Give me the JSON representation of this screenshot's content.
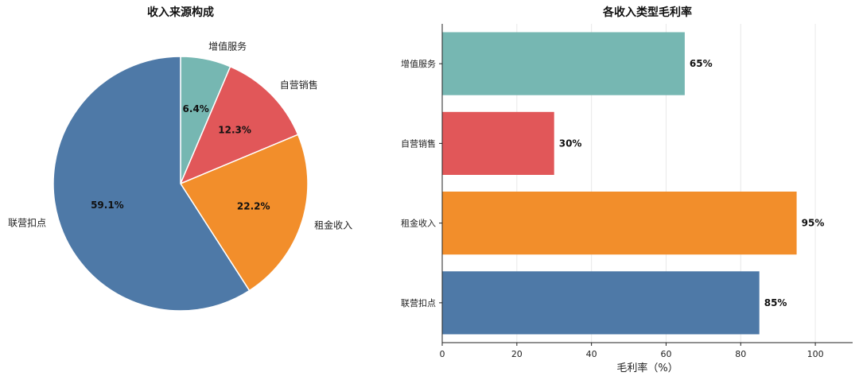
{
  "colors": {
    "联营扣点": "#4e79a7",
    "租金收入": "#f28e2b",
    "自营销售": "#e15759",
    "增值服务": "#76b7b2"
  },
  "chart_data": [
    {
      "type": "pie",
      "title": "收入来源构成",
      "start_angle_deg": 90,
      "direction": "clockwise",
      "slices": [
        {
          "label": "增值服务",
          "value": 6.4,
          "value_label": "6.4%"
        },
        {
          "label": "自营销售",
          "value": 12.3,
          "value_label": "12.3%"
        },
        {
          "label": "租金收入",
          "value": 22.2,
          "value_label": "22.2%"
        },
        {
          "label": "联营扣点",
          "value": 59.1,
          "value_label": "59.1%"
        }
      ]
    },
    {
      "type": "bar",
      "orientation": "horizontal",
      "title": "各收入类型毛利率",
      "xlabel": "毛利率（%）",
      "ylabel": "",
      "xlim": [
        0,
        110
      ],
      "xticks": [
        "0",
        "20",
        "40",
        "60",
        "80",
        "100"
      ],
      "grid": "vertical",
      "categories": [
        "增值服务",
        "自营销售",
        "租金收入",
        "联营扣点"
      ],
      "values": [
        65,
        30,
        95,
        85
      ],
      "value_labels": [
        "65%",
        "30%",
        "95%",
        "85%"
      ]
    }
  ]
}
